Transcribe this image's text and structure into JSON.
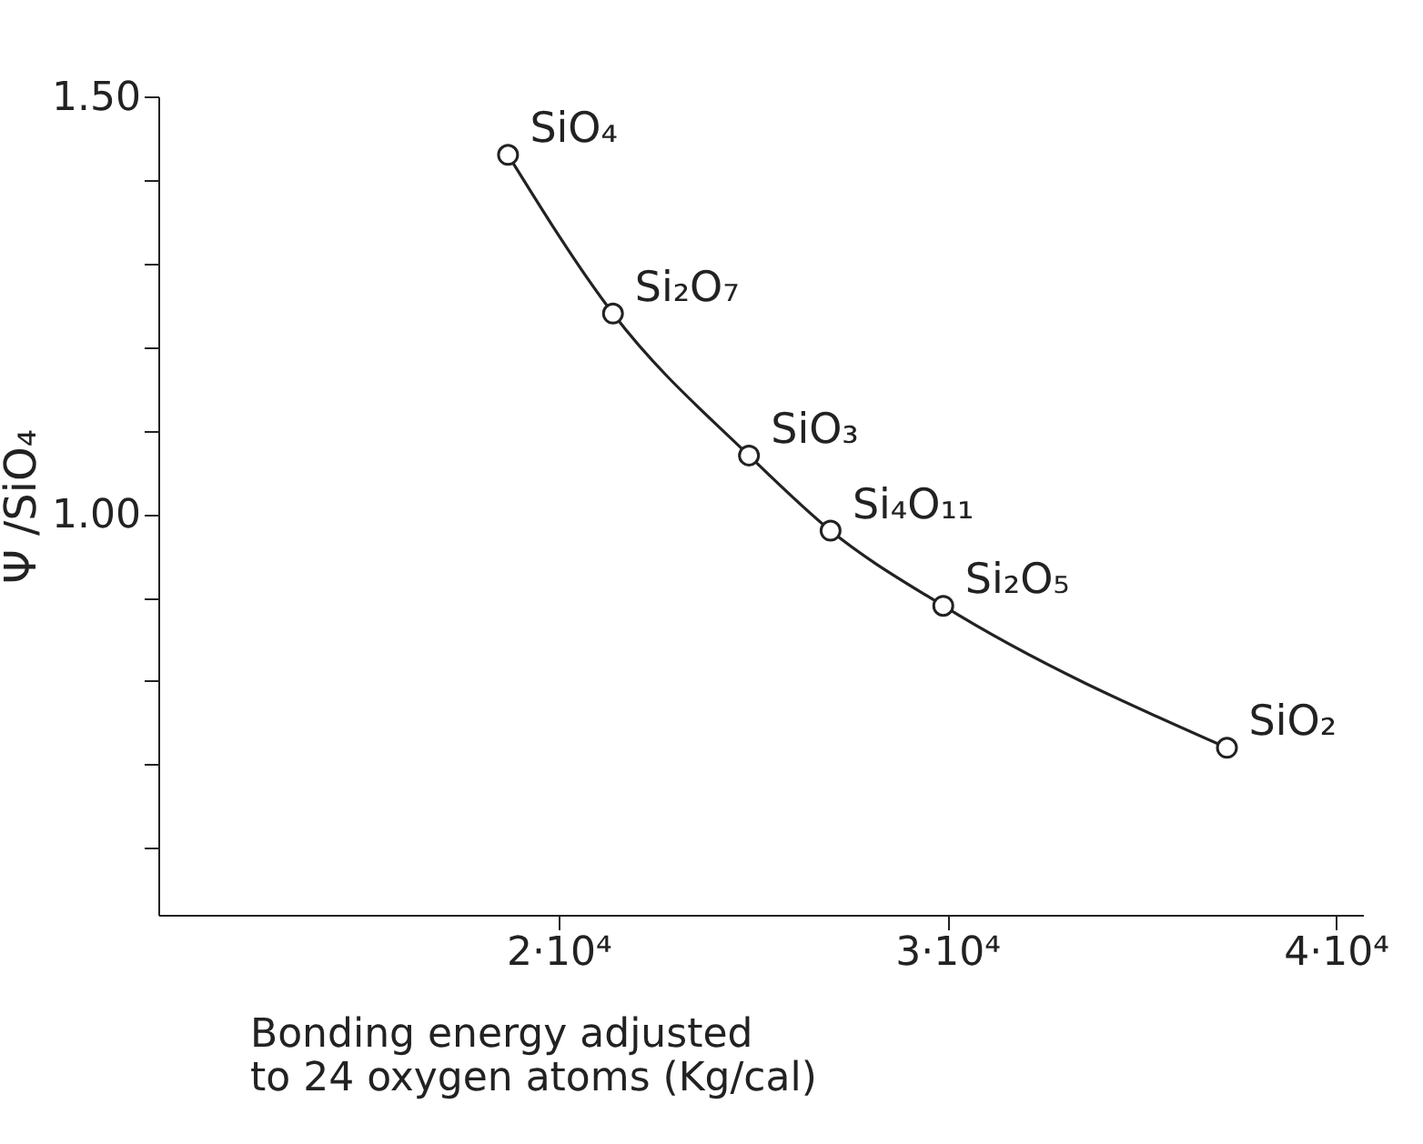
{
  "chart_data": {
    "type": "line",
    "xlabel": "Bonding energy adjusted\nto 24 oxygen atoms (Kg/cal)",
    "ylabel": "Ψ /SiO₄",
    "x": [
      18700,
      21400,
      24900,
      27000,
      29900,
      37200
    ],
    "series": [
      {
        "color": "#222222",
        "values": [
          1.43,
          1.24,
          1.07,
          0.98,
          0.89,
          0.72
        ]
      }
    ],
    "xlim": [
      9700,
      40700
    ],
    "ylim": [
      0.52,
      1.5
    ],
    "xticks": [
      {
        "value": 20000,
        "label": "2·10⁴"
      },
      {
        "value": 30000,
        "label": "3·10⁴"
      },
      {
        "value": 40000,
        "label": "4·10⁴"
      }
    ],
    "yticks": [
      {
        "value": 0.6,
        "label": null
      },
      {
        "value": 0.7,
        "label": null
      },
      {
        "value": 0.8,
        "label": null
      },
      {
        "value": 0.9,
        "label": null
      },
      {
        "value": 1.0,
        "label": "1.00"
      },
      {
        "value": 1.1,
        "label": null
      },
      {
        "value": 1.2,
        "label": null
      },
      {
        "value": 1.3,
        "label": null
      },
      {
        "value": 1.4,
        "label": null
      },
      {
        "value": 1.5,
        "label": "1.50"
      }
    ],
    "annotations": [
      {
        "text": "SiO₄",
        "x": 18700,
        "y": 1.43
      },
      {
        "text": "Si₂O₇",
        "x": 21400,
        "y": 1.24
      },
      {
        "text": "SiO₃",
        "x": 24900,
        "y": 1.07
      },
      {
        "text": "Si₄O₁₁",
        "x": 27000,
        "y": 0.98
      },
      {
        "text": "Si₂O₅",
        "x": 29900,
        "y": 0.89
      },
      {
        "text": "SiO₂",
        "x": 37200,
        "y": 0.72
      }
    ],
    "grid": false,
    "marker": "circle",
    "line_style": "solid"
  }
}
